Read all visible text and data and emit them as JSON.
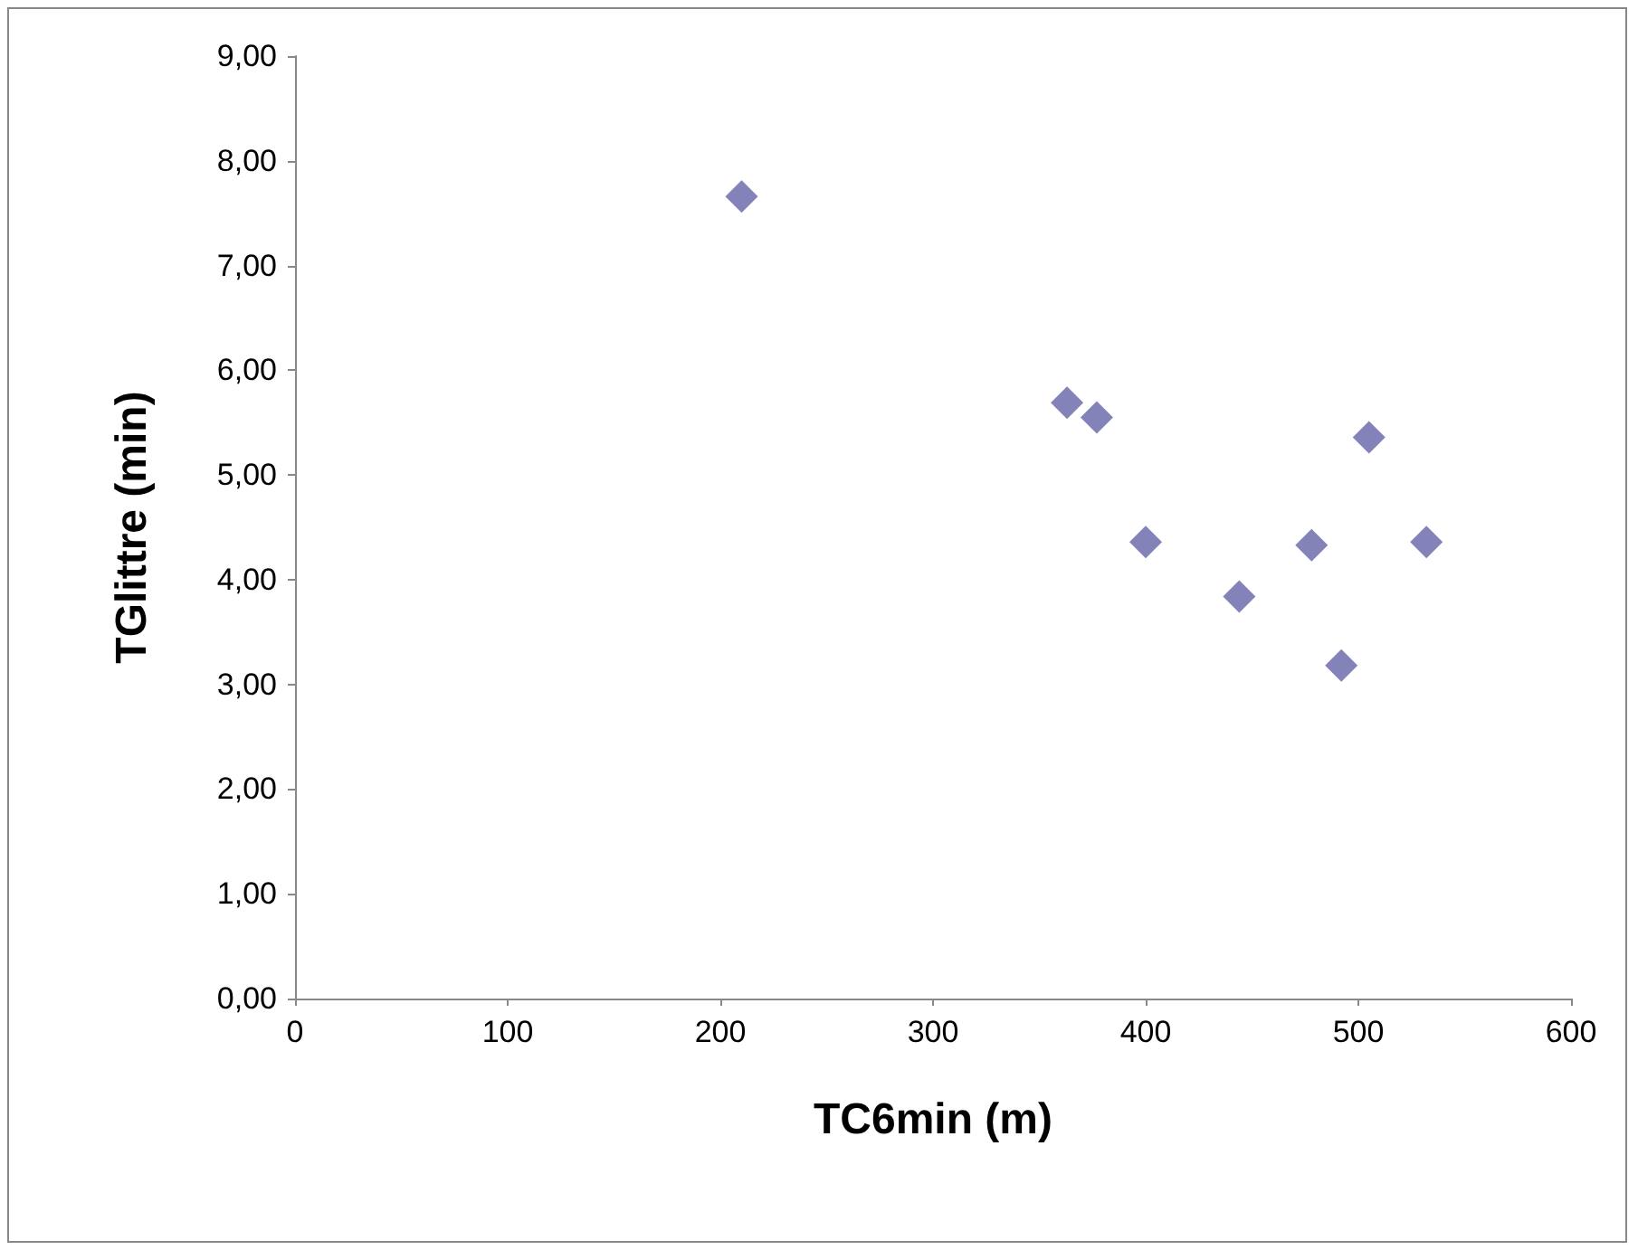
{
  "chart_data": {
    "type": "scatter",
    "xlabel": "TC6min (m)",
    "ylabel": "TGlittre (min)",
    "x": [
      210,
      363,
      377,
      400,
      444,
      478,
      492,
      505,
      532
    ],
    "series": [
      {
        "color": "#6464a8",
        "values": [
          7.66,
          5.69,
          5.55,
          4.36,
          3.84,
          4.33,
          3.18,
          5.36,
          4.36
        ]
      }
    ],
    "xlim": [
      0,
      600
    ],
    "xticks": [
      0,
      100,
      200,
      300,
      400,
      500,
      600
    ],
    "ylim": [
      0,
      9
    ],
    "yticks": [
      {
        "value": 0,
        "label": "0,00"
      },
      {
        "value": 1,
        "label": "1,00"
      },
      {
        "value": 2,
        "label": "2,00"
      },
      {
        "value": 3,
        "label": "3,00"
      },
      {
        "value": 4,
        "label": "4,00"
      },
      {
        "value": 5,
        "label": "5,00"
      },
      {
        "value": 6,
        "label": "6,00"
      },
      {
        "value": 7,
        "label": "7,00"
      },
      {
        "value": 8,
        "label": "8,00"
      },
      {
        "value": 9,
        "label": "9,00"
      }
    ],
    "grid": false,
    "legend": false,
    "marker": "diamond"
  }
}
